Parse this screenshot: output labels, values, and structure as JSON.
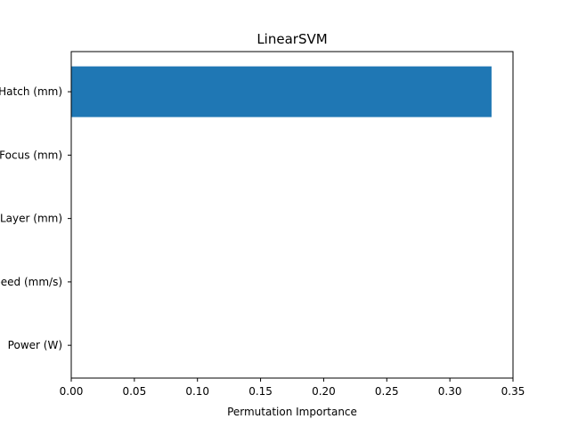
{
  "chart_data": {
    "type": "bar",
    "orientation": "horizontal",
    "title": "LinearSVM",
    "xlabel": "Permutation Importance",
    "ylabel": "",
    "categories": [
      "Hatch (mm)",
      "Focus (mm)",
      "Layer (mm)",
      "Speed (mm/s)",
      "Power (W)"
    ],
    "values": [
      0.333,
      0.0,
      0.0,
      0.0,
      0.0
    ],
    "xlim": [
      0,
      0.35
    ],
    "xticks": [
      "0.00",
      "0.05",
      "0.10",
      "0.15",
      "0.20",
      "0.25",
      "0.30",
      "0.35"
    ],
    "grid": false,
    "bar_color": "#1f77b4"
  }
}
